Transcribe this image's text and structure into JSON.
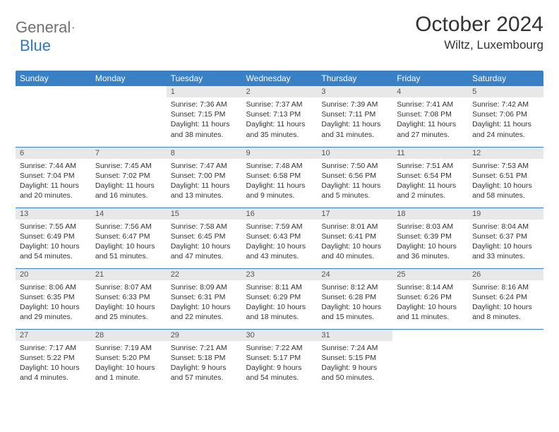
{
  "header": {
    "logo_general": "General",
    "logo_blue": "Blue",
    "month_title": "October 2024",
    "location": "Wiltz, Luxembourg"
  },
  "colors": {
    "header_bg": "#3a80c4",
    "header_text": "#ffffff",
    "day_number_bg": "#e8e8e8",
    "row_border": "#3a80c4",
    "logo_gray": "#707070",
    "logo_blue": "#2f78bd"
  },
  "day_names": [
    "Sunday",
    "Monday",
    "Tuesday",
    "Wednesday",
    "Thursday",
    "Friday",
    "Saturday"
  ],
  "weeks": [
    [
      {
        "n": "",
        "sr": "",
        "ss": "",
        "dl": ""
      },
      {
        "n": "",
        "sr": "",
        "ss": "",
        "dl": ""
      },
      {
        "n": "1",
        "sr": "Sunrise: 7:36 AM",
        "ss": "Sunset: 7:15 PM",
        "dl": "Daylight: 11 hours and 38 minutes."
      },
      {
        "n": "2",
        "sr": "Sunrise: 7:37 AM",
        "ss": "Sunset: 7:13 PM",
        "dl": "Daylight: 11 hours and 35 minutes."
      },
      {
        "n": "3",
        "sr": "Sunrise: 7:39 AM",
        "ss": "Sunset: 7:11 PM",
        "dl": "Daylight: 11 hours and 31 minutes."
      },
      {
        "n": "4",
        "sr": "Sunrise: 7:41 AM",
        "ss": "Sunset: 7:08 PM",
        "dl": "Daylight: 11 hours and 27 minutes."
      },
      {
        "n": "5",
        "sr": "Sunrise: 7:42 AM",
        "ss": "Sunset: 7:06 PM",
        "dl": "Daylight: 11 hours and 24 minutes."
      }
    ],
    [
      {
        "n": "6",
        "sr": "Sunrise: 7:44 AM",
        "ss": "Sunset: 7:04 PM",
        "dl": "Daylight: 11 hours and 20 minutes."
      },
      {
        "n": "7",
        "sr": "Sunrise: 7:45 AM",
        "ss": "Sunset: 7:02 PM",
        "dl": "Daylight: 11 hours and 16 minutes."
      },
      {
        "n": "8",
        "sr": "Sunrise: 7:47 AM",
        "ss": "Sunset: 7:00 PM",
        "dl": "Daylight: 11 hours and 13 minutes."
      },
      {
        "n": "9",
        "sr": "Sunrise: 7:48 AM",
        "ss": "Sunset: 6:58 PM",
        "dl": "Daylight: 11 hours and 9 minutes."
      },
      {
        "n": "10",
        "sr": "Sunrise: 7:50 AM",
        "ss": "Sunset: 6:56 PM",
        "dl": "Daylight: 11 hours and 5 minutes."
      },
      {
        "n": "11",
        "sr": "Sunrise: 7:51 AM",
        "ss": "Sunset: 6:54 PM",
        "dl": "Daylight: 11 hours and 2 minutes."
      },
      {
        "n": "12",
        "sr": "Sunrise: 7:53 AM",
        "ss": "Sunset: 6:51 PM",
        "dl": "Daylight: 10 hours and 58 minutes."
      }
    ],
    [
      {
        "n": "13",
        "sr": "Sunrise: 7:55 AM",
        "ss": "Sunset: 6:49 PM",
        "dl": "Daylight: 10 hours and 54 minutes."
      },
      {
        "n": "14",
        "sr": "Sunrise: 7:56 AM",
        "ss": "Sunset: 6:47 PM",
        "dl": "Daylight: 10 hours and 51 minutes."
      },
      {
        "n": "15",
        "sr": "Sunrise: 7:58 AM",
        "ss": "Sunset: 6:45 PM",
        "dl": "Daylight: 10 hours and 47 minutes."
      },
      {
        "n": "16",
        "sr": "Sunrise: 7:59 AM",
        "ss": "Sunset: 6:43 PM",
        "dl": "Daylight: 10 hours and 43 minutes."
      },
      {
        "n": "17",
        "sr": "Sunrise: 8:01 AM",
        "ss": "Sunset: 6:41 PM",
        "dl": "Daylight: 10 hours and 40 minutes."
      },
      {
        "n": "18",
        "sr": "Sunrise: 8:03 AM",
        "ss": "Sunset: 6:39 PM",
        "dl": "Daylight: 10 hours and 36 minutes."
      },
      {
        "n": "19",
        "sr": "Sunrise: 8:04 AM",
        "ss": "Sunset: 6:37 PM",
        "dl": "Daylight: 10 hours and 33 minutes."
      }
    ],
    [
      {
        "n": "20",
        "sr": "Sunrise: 8:06 AM",
        "ss": "Sunset: 6:35 PM",
        "dl": "Daylight: 10 hours and 29 minutes."
      },
      {
        "n": "21",
        "sr": "Sunrise: 8:07 AM",
        "ss": "Sunset: 6:33 PM",
        "dl": "Daylight: 10 hours and 25 minutes."
      },
      {
        "n": "22",
        "sr": "Sunrise: 8:09 AM",
        "ss": "Sunset: 6:31 PM",
        "dl": "Daylight: 10 hours and 22 minutes."
      },
      {
        "n": "23",
        "sr": "Sunrise: 8:11 AM",
        "ss": "Sunset: 6:29 PM",
        "dl": "Daylight: 10 hours and 18 minutes."
      },
      {
        "n": "24",
        "sr": "Sunrise: 8:12 AM",
        "ss": "Sunset: 6:28 PM",
        "dl": "Daylight: 10 hours and 15 minutes."
      },
      {
        "n": "25",
        "sr": "Sunrise: 8:14 AM",
        "ss": "Sunset: 6:26 PM",
        "dl": "Daylight: 10 hours and 11 minutes."
      },
      {
        "n": "26",
        "sr": "Sunrise: 8:16 AM",
        "ss": "Sunset: 6:24 PM",
        "dl": "Daylight: 10 hours and 8 minutes."
      }
    ],
    [
      {
        "n": "27",
        "sr": "Sunrise: 7:17 AM",
        "ss": "Sunset: 5:22 PM",
        "dl": "Daylight: 10 hours and 4 minutes."
      },
      {
        "n": "28",
        "sr": "Sunrise: 7:19 AM",
        "ss": "Sunset: 5:20 PM",
        "dl": "Daylight: 10 hours and 1 minute."
      },
      {
        "n": "29",
        "sr": "Sunrise: 7:21 AM",
        "ss": "Sunset: 5:18 PM",
        "dl": "Daylight: 9 hours and 57 minutes."
      },
      {
        "n": "30",
        "sr": "Sunrise: 7:22 AM",
        "ss": "Sunset: 5:17 PM",
        "dl": "Daylight: 9 hours and 54 minutes."
      },
      {
        "n": "31",
        "sr": "Sunrise: 7:24 AM",
        "ss": "Sunset: 5:15 PM",
        "dl": "Daylight: 9 hours and 50 minutes."
      },
      {
        "n": "",
        "sr": "",
        "ss": "",
        "dl": ""
      },
      {
        "n": "",
        "sr": "",
        "ss": "",
        "dl": ""
      }
    ]
  ]
}
